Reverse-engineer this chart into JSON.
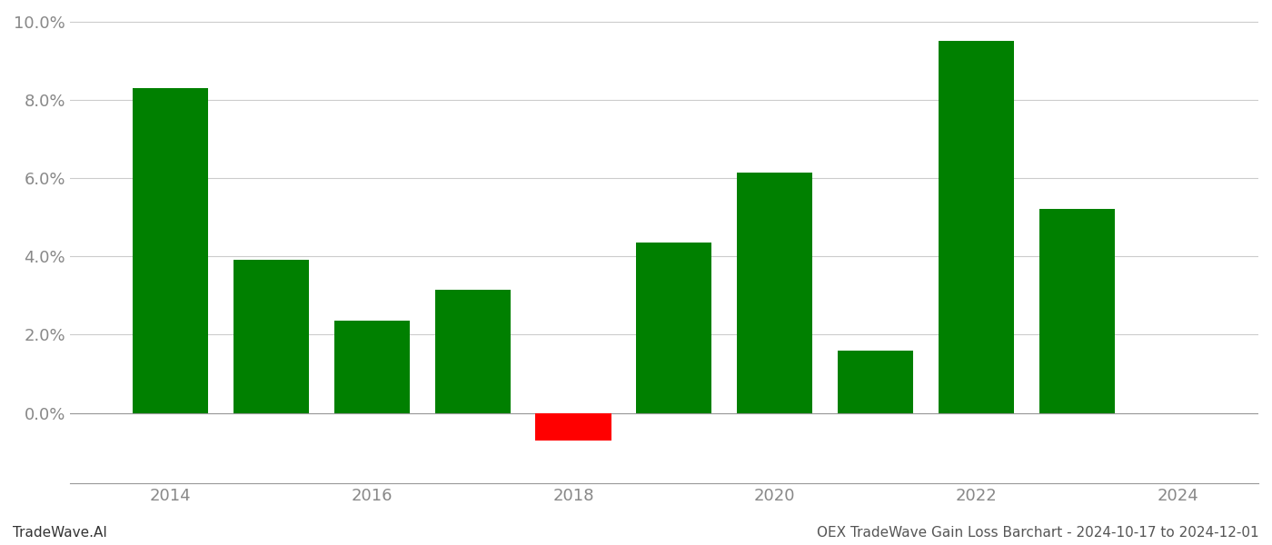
{
  "years": [
    2014,
    2015,
    2016,
    2017,
    2018,
    2019,
    2020,
    2021,
    2022,
    2023
  ],
  "values": [
    0.083,
    0.039,
    0.0235,
    0.0315,
    -0.007,
    0.0435,
    0.0615,
    0.016,
    0.095,
    0.052
  ],
  "bar_colors": [
    "#008000",
    "#008000",
    "#008000",
    "#008000",
    "#ff0000",
    "#008000",
    "#008000",
    "#008000",
    "#008000",
    "#008000"
  ],
  "footer_left": "TradeWave.AI",
  "footer_right": "OEX TradeWave Gain Loss Barchart - 2024-10-17 to 2024-12-01",
  "ylim_min": -0.018,
  "ylim_max": 0.102,
  "yticks": [
    0.0,
    0.02,
    0.04,
    0.06,
    0.08,
    0.1
  ],
  "xticks": [
    2014,
    2016,
    2018,
    2020,
    2022,
    2024
  ],
  "xlim_min": 2013.0,
  "xlim_max": 2024.8,
  "background_color": "#ffffff",
  "grid_color": "#cccccc",
  "bar_width": 0.75,
  "tick_label_color": "#888888",
  "tick_labelsize": 13,
  "footer_fontsize": 11
}
